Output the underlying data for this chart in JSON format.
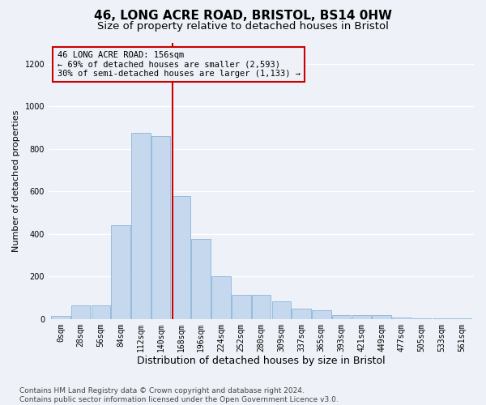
{
  "title": "46, LONG ACRE ROAD, BRISTOL, BS14 0HW",
  "subtitle": "Size of property relative to detached houses in Bristol",
  "xlabel": "Distribution of detached houses by size in Bristol",
  "ylabel": "Number of detached properties",
  "categories": [
    "0sqm",
    "28sqm",
    "56sqm",
    "84sqm",
    "112sqm",
    "140sqm",
    "168sqm",
    "196sqm",
    "224sqm",
    "252sqm",
    "280sqm",
    "309sqm",
    "337sqm",
    "365sqm",
    "393sqm",
    "421sqm",
    "449sqm",
    "477sqm",
    "505sqm",
    "533sqm",
    "561sqm"
  ],
  "values": [
    13,
    65,
    65,
    440,
    875,
    860,
    580,
    375,
    200,
    115,
    115,
    85,
    50,
    42,
    20,
    17,
    17,
    8,
    5,
    5,
    5
  ],
  "bar_color": "#c5d8ed",
  "bar_edge_color": "#7aadd4",
  "vline_color": "#cc0000",
  "annotation_line1": "46 LONG ACRE ROAD: 156sqm",
  "annotation_line2": "← 69% of detached houses are smaller (2,593)",
  "annotation_line3": "30% of semi-detached houses are larger (1,133) →",
  "annotation_box_edgecolor": "#cc0000",
  "ylim": [
    0,
    1300
  ],
  "yticks": [
    0,
    200,
    400,
    600,
    800,
    1000,
    1200
  ],
  "background_color": "#eef2f8",
  "grid_color": "#ffffff",
  "footer_line1": "Contains HM Land Registry data © Crown copyright and database right 2024.",
  "footer_line2": "Contains public sector information licensed under the Open Government Licence v3.0.",
  "title_fontsize": 11,
  "subtitle_fontsize": 9.5,
  "xlabel_fontsize": 9,
  "ylabel_fontsize": 8,
  "tick_fontsize": 7,
  "annotation_fontsize": 7.5,
  "footer_fontsize": 6.5
}
